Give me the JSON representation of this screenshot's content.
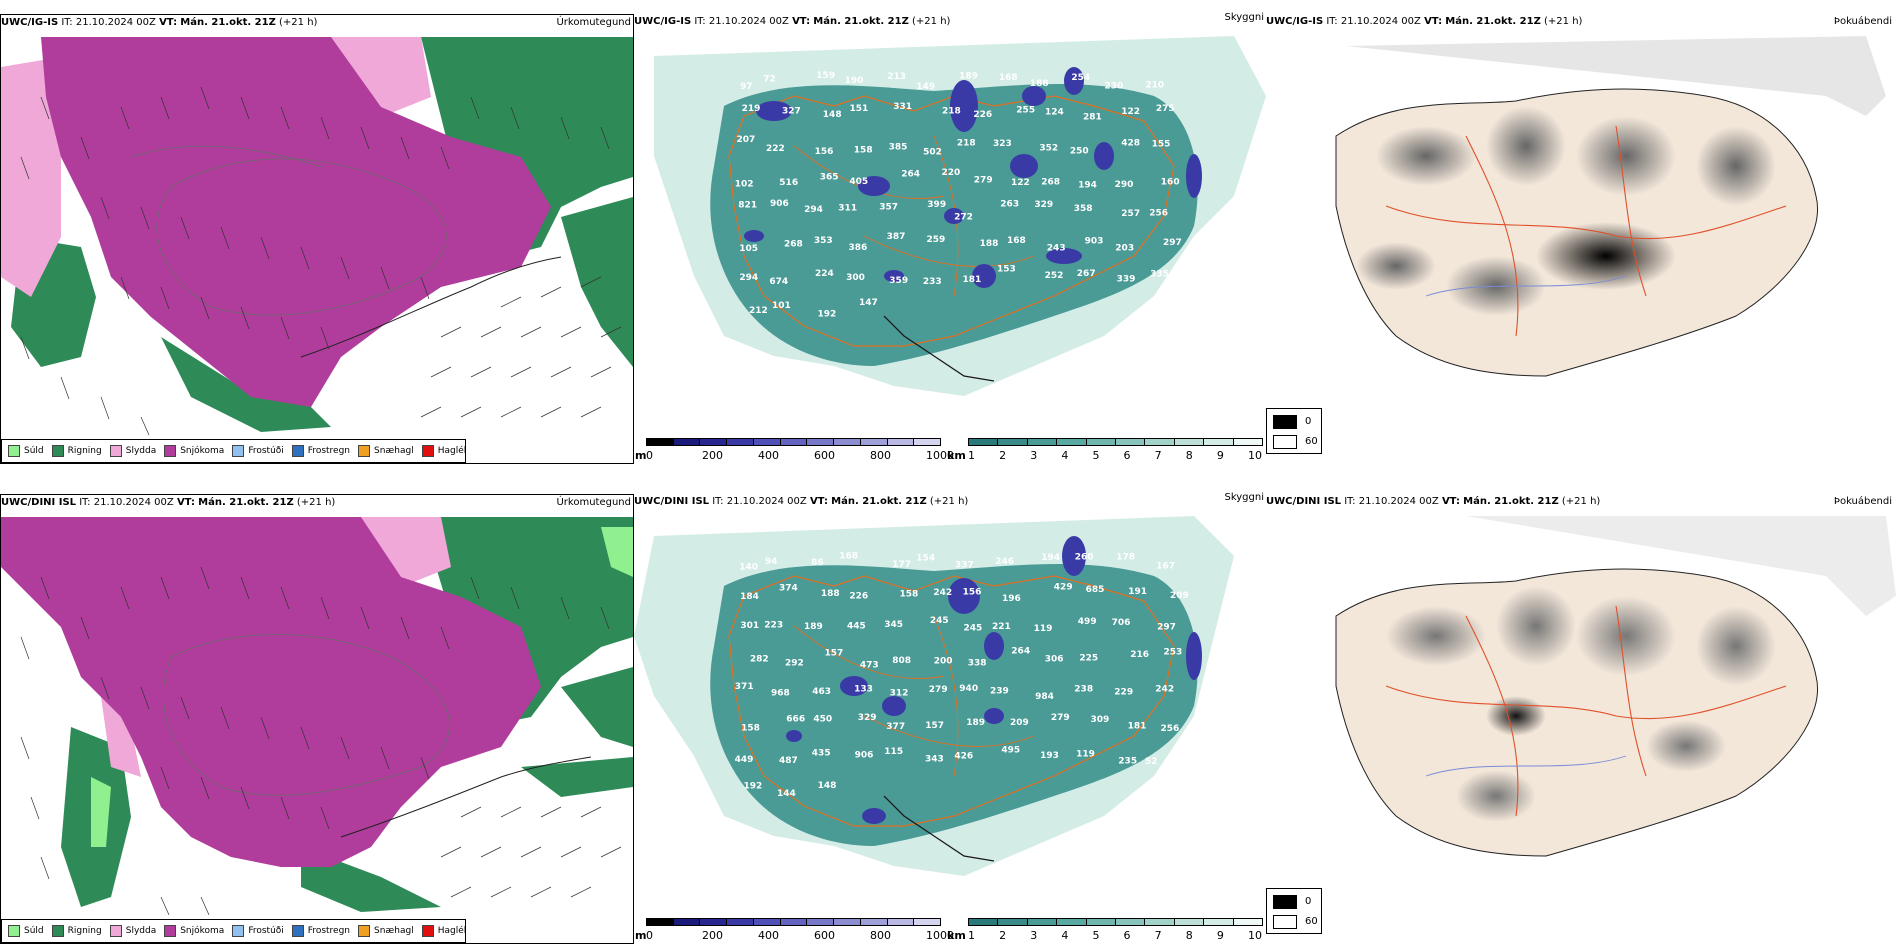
{
  "rows": [
    {
      "model": "UWC/IG-IS",
      "it_label": "IT:",
      "it_value": "21.10.2024 00Z",
      "vt_label": "VT:",
      "vt_value": "Mán. 21.okt. 21Z",
      "lead": "(+21 h)",
      "titles": {
        "precip": "Úrkomutegund",
        "cloud": "Skyggni",
        "fog": "Þokuábendi"
      },
      "snow_labels": [
        "97",
        "72",
        "159",
        "190",
        "213",
        "149",
        "189",
        "168",
        "188",
        "254",
        "230",
        "210",
        "219",
        "327",
        "148",
        "151",
        "331",
        "218",
        "226",
        "255",
        "124",
        "281",
        "122",
        "275",
        "207",
        "222",
        "156",
        "158",
        "385",
        "502",
        "218",
        "323",
        "352",
        "250",
        "428",
        "155",
        "102",
        "516",
        "365",
        "405",
        "264",
        "220",
        "279",
        "122",
        "268",
        "194",
        "290",
        "160",
        "821",
        "906",
        "294",
        "311",
        "357",
        "399",
        "272",
        "263",
        "329",
        "358",
        "257",
        "256",
        "105",
        "268",
        "353",
        "386",
        "387",
        "259",
        "188",
        "168",
        "243",
        "903",
        "203",
        "297",
        "294",
        "674",
        "224",
        "300",
        "359",
        "233",
        "181",
        "153",
        "252",
        "267",
        "339",
        "335",
        "212",
        "101",
        "192",
        "147"
      ]
    },
    {
      "model": "UWC/DINI ISL",
      "it_label": "IT:",
      "it_value": "21.10.2024 00Z",
      "vt_label": "VT:",
      "vt_value": "Mán. 21.okt. 21Z",
      "lead": "(+21 h)",
      "titles": {
        "precip": "Úrkomutegund",
        "cloud": "Skyggni",
        "fog": "Þokuábendi"
      },
      "snow_labels": [
        "140",
        "94",
        "86",
        "168",
        "177",
        "154",
        "337",
        "246",
        "194",
        "260",
        "178",
        "167",
        "184",
        "374",
        "188",
        "226",
        "158",
        "242",
        "156",
        "196",
        "429",
        "685",
        "191",
        "209",
        "301",
        "223",
        "189",
        "445",
        "345",
        "245",
        "245",
        "221",
        "119",
        "499",
        "706",
        "297",
        "282",
        "292",
        "157",
        "473",
        "808",
        "200",
        "338",
        "264",
        "306",
        "225",
        "216",
        "253",
        "371",
        "968",
        "463",
        "133",
        "312",
        "279",
        "940",
        "239",
        "984",
        "238",
        "229",
        "242",
        "158",
        "666",
        "450",
        "329",
        "377",
        "157",
        "189",
        "209",
        "279",
        "309",
        "181",
        "256",
        "449",
        "487",
        "435",
        "906",
        "115",
        "343",
        "426",
        "495",
        "193",
        "119",
        "235",
        "52",
        "192",
        "144",
        "148"
      ]
    }
  ],
  "precip_legend": [
    {
      "label": "Súld",
      "color": "#90f090"
    },
    {
      "label": "Rigning",
      "color": "#2e8b57"
    },
    {
      "label": "Slydda",
      "color": "#f0a8d8"
    },
    {
      "label": "Snjókoma",
      "color": "#b03c9c"
    },
    {
      "label": "Frostúði",
      "color": "#90c0f0"
    },
    {
      "label": "Frostregn",
      "color": "#3070c0"
    },
    {
      "label": "Snæhagl",
      "color": "#f0a020"
    },
    {
      "label": "Haglél",
      "color": "#e01010"
    }
  ],
  "snow_scale": {
    "unit": "m",
    "ticks": [
      "0",
      "200",
      "400",
      "600",
      "800",
      "1000"
    ],
    "colors": [
      "#000000",
      "#1a1a7a",
      "#26268e",
      "#3a3aa6",
      "#5050b6",
      "#6464c0",
      "#7878c8",
      "#8c8cd0",
      "#a0a0d8",
      "#b8b8e2",
      "#d4d4ee"
    ]
  },
  "vis_scale": {
    "unit": "km",
    "ticks": [
      "1",
      "2",
      "3",
      "4",
      "5",
      "6",
      "7",
      "8",
      "9",
      "10"
    ],
    "colors": [
      "#2a7a7a",
      "#3a8a8a",
      "#4a9a96",
      "#5aa8a2",
      "#70b6ae",
      "#88c4bc",
      "#a2d2ca",
      "#bce0d8",
      "#d4ece6",
      "#eef8f6"
    ]
  },
  "fog_key": {
    "labels": [
      "0",
      "60"
    ],
    "colors": [
      "#000000",
      "#ffffff"
    ]
  },
  "colors": {
    "rain": "#2e8b57",
    "sleet": "#f0a8d8",
    "snow": "#b03c9c",
    "drizzle": "#90f090",
    "vis": "#4a9a96",
    "snowline": "#3a3aa6",
    "land": "#f3e7da",
    "road": "#e0502a"
  }
}
